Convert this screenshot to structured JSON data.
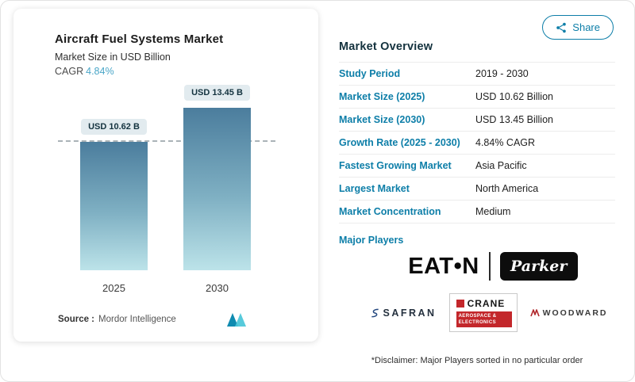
{
  "chart_panel": {
    "title": "Aircraft Fuel Systems Market",
    "subtitle": "Market Size in USD Billion",
    "cagr_label": "CAGR",
    "cagr_value": "4.84%",
    "source_label": "Source :",
    "source_value": "Mordor Intelligence"
  },
  "chart_data": {
    "type": "bar",
    "title": "Aircraft Fuel Systems Market",
    "ylabel": "Market Size in USD Billion",
    "categories": [
      "2025",
      "2030"
    ],
    "values": [
      10.62,
      13.45
    ],
    "bar_labels": [
      "USD 10.62 B",
      "USD 13.45 B"
    ],
    "ylim": [
      0,
      14
    ],
    "grid": "off",
    "reference_line": {
      "style": "dashed",
      "at_value": 10.62
    },
    "cagr": "4.84%",
    "bar_gradient": [
      "#4b7d9d",
      "#bce3e9"
    ]
  },
  "share_button": {
    "label": "Share"
  },
  "overview": {
    "heading": "Market Overview",
    "rows": [
      {
        "label": "Study Period",
        "value": "2019 - 2030"
      },
      {
        "label": "Market Size (2025)",
        "value": "USD 10.62 Billion"
      },
      {
        "label": "Market Size (2030)",
        "value": "USD 13.45 Billion"
      },
      {
        "label": "Growth Rate (2025 - 2030)",
        "value": "4.84% CAGR"
      },
      {
        "label": "Fastest Growing Market",
        "value": "Asia Pacific"
      },
      {
        "label": "Largest Market",
        "value": "North America"
      },
      {
        "label": "Market Concentration",
        "value": "Medium"
      }
    ],
    "major_players_label": "Major Players",
    "disclaimer": "*Disclaimer: Major Players sorted in no particular order"
  },
  "players": {
    "eaton": {
      "name": "Eaton",
      "logo_text": "EAT•N"
    },
    "parker": {
      "name": "Parker",
      "logo_text": "Parker"
    },
    "safran": {
      "name": "Safran",
      "logo_text": "SAFRAN"
    },
    "crane": {
      "name": "Crane Aerospace & Electronics",
      "logo_text": "CRANE",
      "logo_subtext1": "AEROSPACE &",
      "logo_subtext2": "ELECTRONICS"
    },
    "woodward": {
      "name": "Woodward",
      "logo_text": "WOODWARD"
    }
  },
  "colors": {
    "accent": "#0d7ea8",
    "cagr_value": "#4aa6c8",
    "heading": "#14323e",
    "bar_top": "#4b7d9d",
    "bar_bottom": "#bce3e9",
    "crane_red": "#c3272b"
  }
}
